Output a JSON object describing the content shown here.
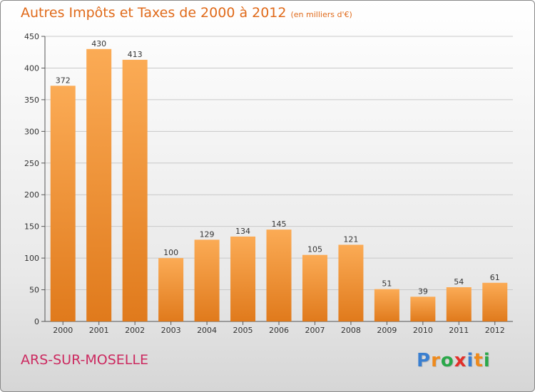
{
  "title": "Autres Impôts et Taxes de 2000 à 2012",
  "unit": "(en milliers d'€)",
  "commune": "ARS-SUR-MOSELLE",
  "logo": {
    "text": "Proxiti",
    "colors": [
      "#3a7fd0",
      "#ee8a1c",
      "#2aa84a",
      "#e2302a",
      "#3a7fd0",
      "#ee8a1c",
      "#2aa84a"
    ]
  },
  "colors": {
    "bar_top": "#fbab55",
    "bar_bottom": "#e07a1c",
    "title": "#e06a1a",
    "commune": "#cc2a60",
    "grid": "#c8c8c8"
  },
  "chart_data": {
    "type": "bar",
    "categories": [
      "2000",
      "2001",
      "2002",
      "2003",
      "2004",
      "2005",
      "2006",
      "2007",
      "2008",
      "2009",
      "2010",
      "2011",
      "2012"
    ],
    "values": [
      372,
      430,
      413,
      100,
      129,
      134,
      145,
      105,
      121,
      51,
      39,
      54,
      61
    ],
    "ylim": [
      0,
      450
    ],
    "yticks": [
      0,
      50,
      100,
      150,
      200,
      250,
      300,
      350,
      400,
      450
    ],
    "grid": true,
    "data_labels": true
  }
}
